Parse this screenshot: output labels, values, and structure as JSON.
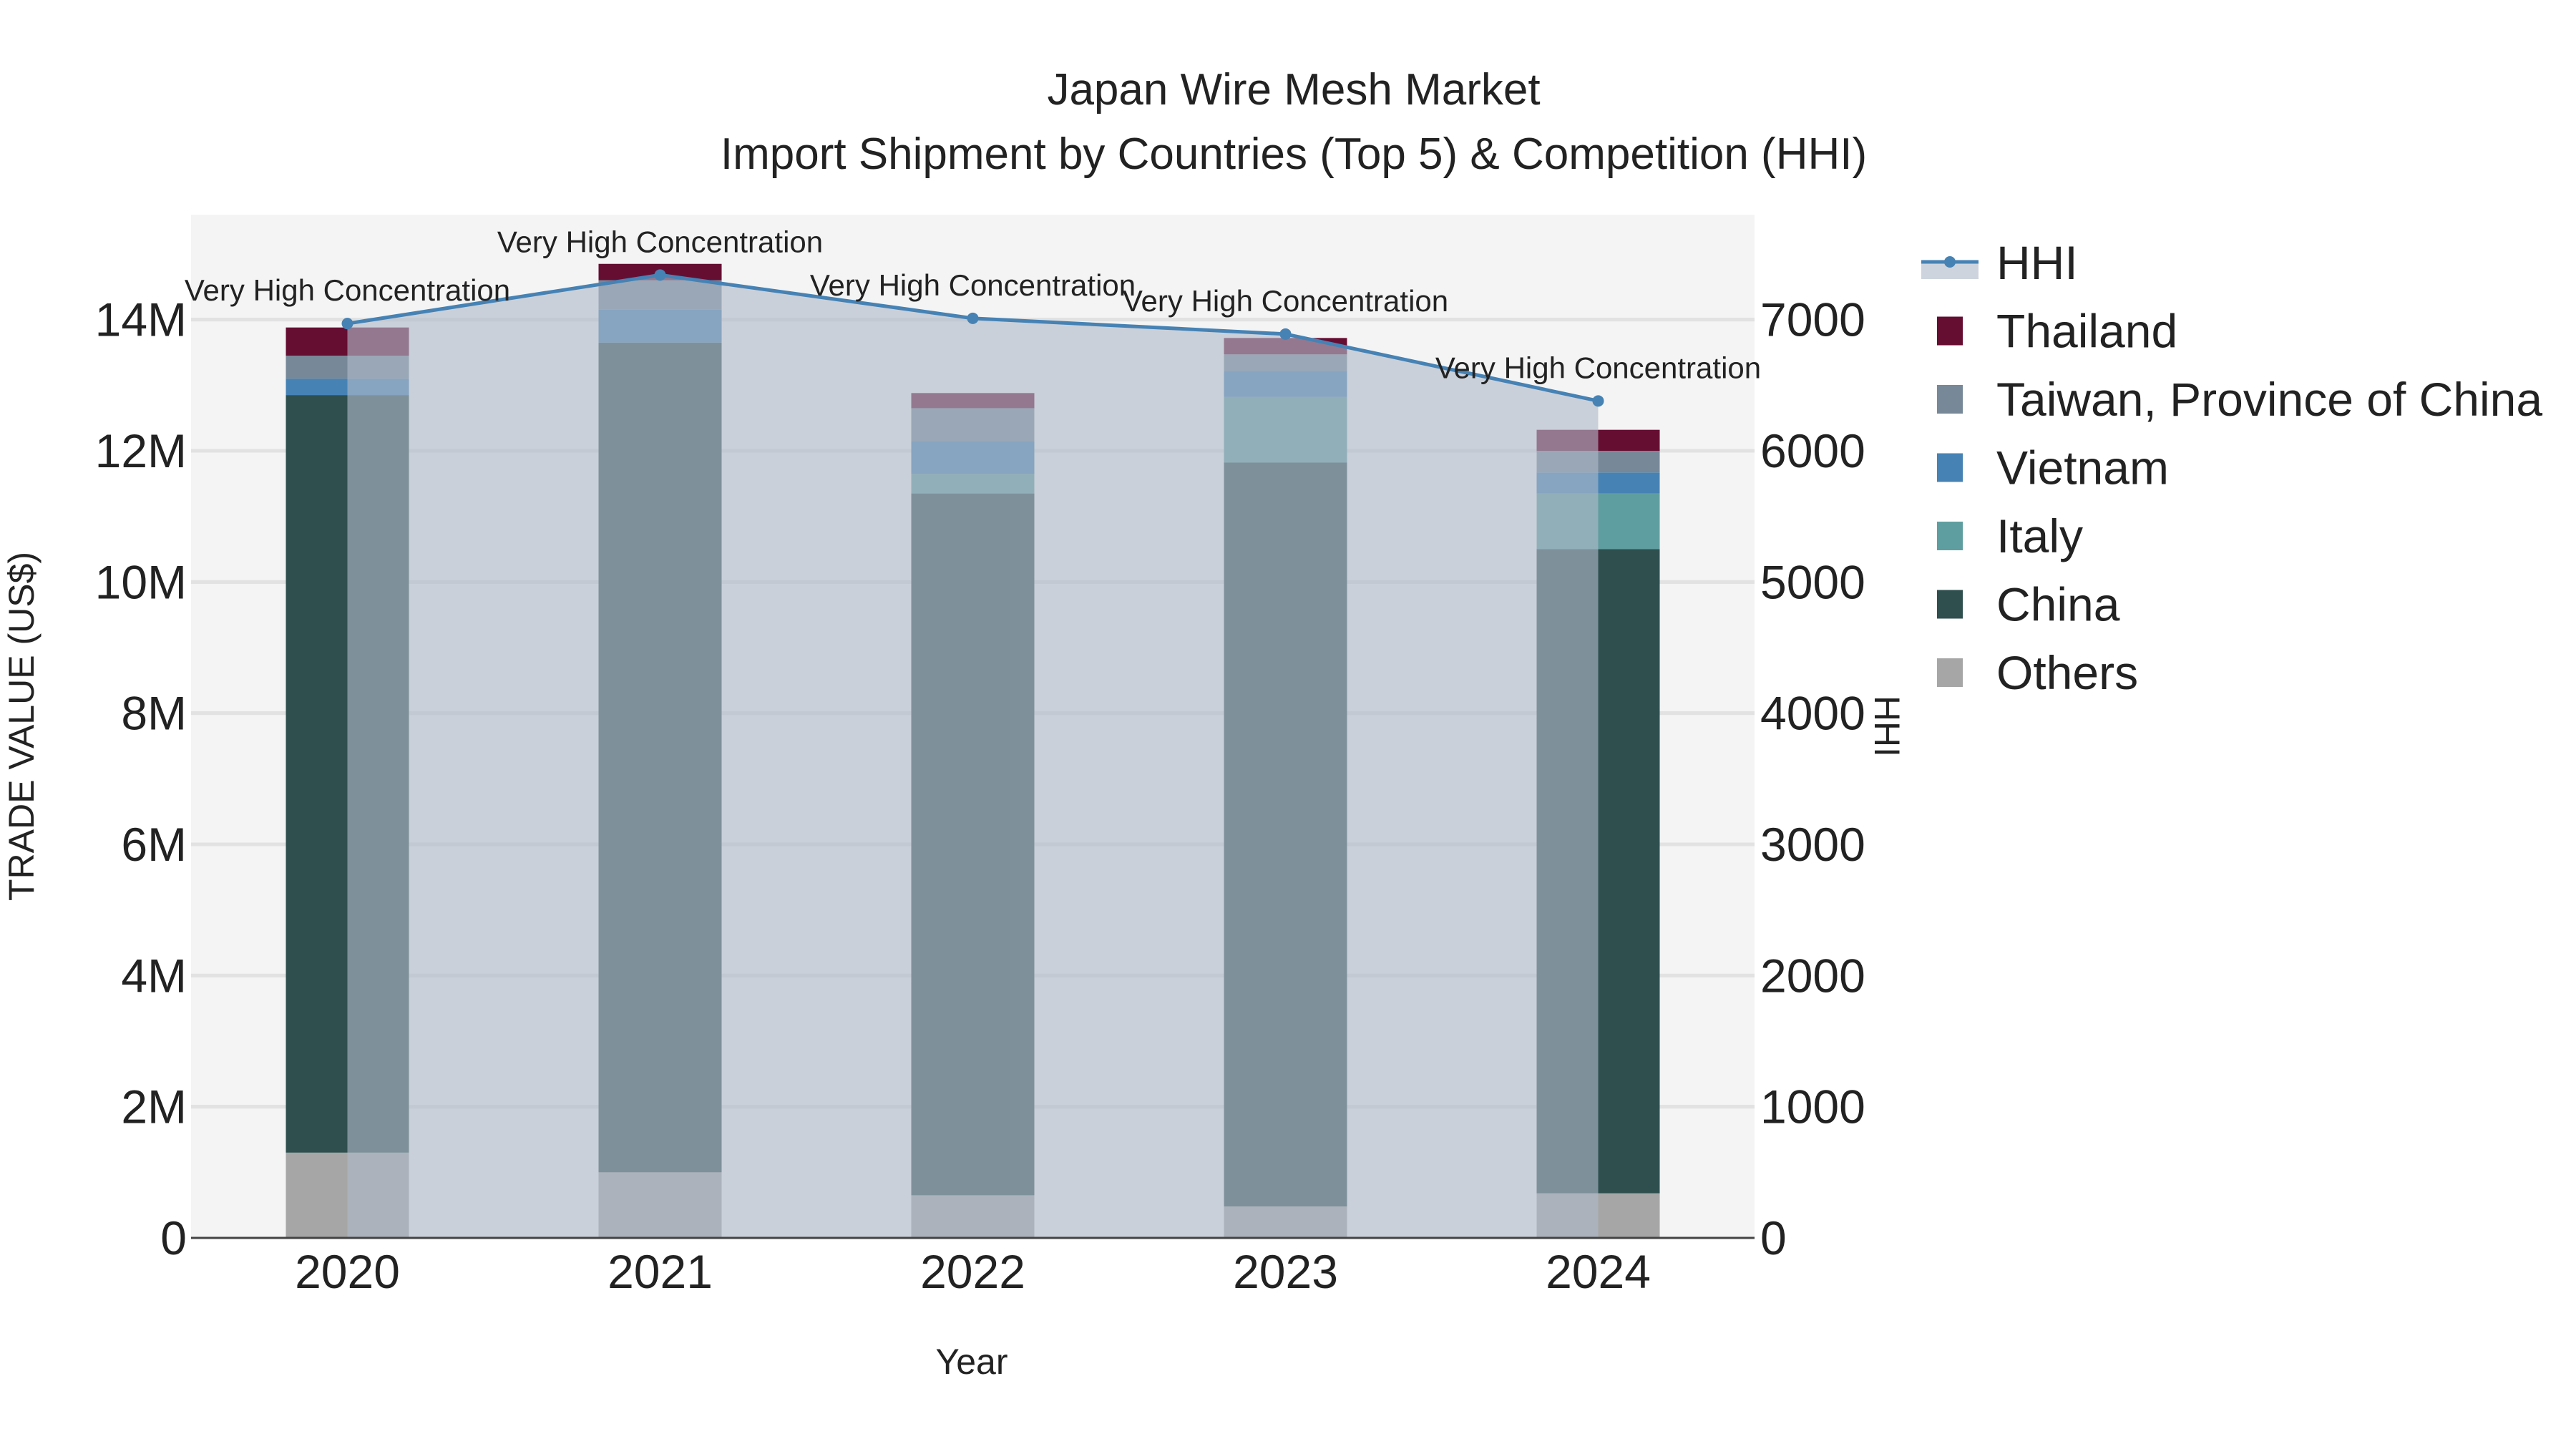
{
  "chart_data": {
    "type": "bar",
    "stacked": true,
    "title": "Japan Wire Mesh Market",
    "subtitle": "Import Shipment by Countries (Top 5) & Competition (HHI)",
    "xlabel": "Year",
    "ylabel": "TRADE VALUE (US$)",
    "y2label": "HHI",
    "categories": [
      "2020",
      "2021",
      "2022",
      "2023",
      "2024"
    ],
    "ylim": [
      0,
      15600000
    ],
    "y2lim": [
      0,
      7800
    ],
    "yticks": [
      {
        "value": 0,
        "label": "0"
      },
      {
        "value": 2000000,
        "label": "2M"
      },
      {
        "value": 4000000,
        "label": "4M"
      },
      {
        "value": 6000000,
        "label": "6M"
      },
      {
        "value": 8000000,
        "label": "8M"
      },
      {
        "value": 10000000,
        "label": "10M"
      },
      {
        "value": 12000000,
        "label": "12M"
      },
      {
        "value": 14000000,
        "label": "14M"
      }
    ],
    "y2ticks": [
      {
        "value": 0,
        "label": "0"
      },
      {
        "value": 1000,
        "label": "1000"
      },
      {
        "value": 2000,
        "label": "2000"
      },
      {
        "value": 3000,
        "label": "3000"
      },
      {
        "value": 4000,
        "label": "4000"
      },
      {
        "value": 5000,
        "label": "5000"
      },
      {
        "value": 6000,
        "label": "6000"
      },
      {
        "value": 7000,
        "label": "7000"
      }
    ],
    "series": [
      {
        "name": "Others",
        "color": "#a6a6a6",
        "values": [
          1300000,
          1000000,
          650000,
          480000,
          680000
        ]
      },
      {
        "name": "China",
        "color": "#2f4f4f",
        "values": [
          11550000,
          12650000,
          10700000,
          11340000,
          9820000
        ]
      },
      {
        "name": "Italy",
        "color": "#5f9ea0",
        "values": [
          0,
          0,
          300000,
          1000000,
          850000
        ]
      },
      {
        "name": "Vietnam",
        "color": "#4682b4",
        "values": [
          250000,
          500000,
          500000,
          400000,
          320000
        ]
      },
      {
        "name": "Taiwan, Province of China",
        "color": "#778899",
        "values": [
          350000,
          450000,
          500000,
          250000,
          330000
        ]
      },
      {
        "name": "Thailand",
        "color": "#660e32",
        "values": [
          430000,
          250000,
          230000,
          250000,
          320000
        ]
      }
    ],
    "hhi": {
      "name": "HHI",
      "color": "#4682b4",
      "values": [
        6970,
        7340,
        7010,
        6890,
        6380
      ],
      "labels": [
        "Very High Concentration",
        "Very High Concentration",
        "Very High Concentration",
        "Very High Concentration",
        "Very High Concentration"
      ]
    },
    "legend": [
      "HHI",
      "Thailand",
      "Taiwan, Province of China",
      "Vietnam",
      "Italy",
      "China",
      "Others"
    ],
    "legend_position": "right",
    "grid": true
  }
}
